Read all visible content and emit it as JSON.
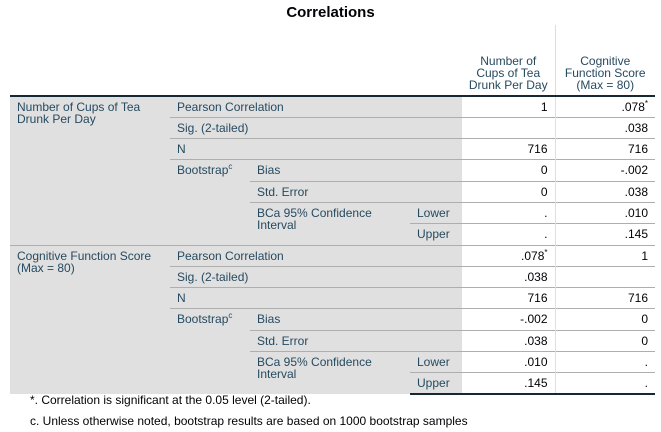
{
  "title": "Correlations",
  "columns": [
    "Number of Cups of Tea Drunk Per Day",
    "Cognitive Function Score (Max = 80)"
  ],
  "row_labels": {
    "pearson": "Pearson Correlation",
    "sig": "Sig. (2-tailed)",
    "n": "N",
    "bootstrap": "Bootstrap",
    "bootstrap_sup": "c",
    "bias": "Bias",
    "se": "Std. Error",
    "bca": "BCa 95% Confidence Interval",
    "lower": "Lower",
    "upper": "Upper"
  },
  "blocks": [
    {
      "variable": "Number of Cups of Tea Drunk Per Day",
      "c1": {
        "pearson": "1",
        "sig": "",
        "n": "716",
        "bias": "0",
        "se": "0",
        "lower": ".",
        "upper": "."
      },
      "c2": {
        "pearson": ".078",
        "pearson_sup": "*",
        "sig": ".038",
        "n": "716",
        "bias": "-.002",
        "se": ".038",
        "lower": ".010",
        "upper": ".145"
      }
    },
    {
      "variable": "Cognitive Function Score (Max = 80)",
      "c1": {
        "pearson": ".078",
        "pearson_sup": "*",
        "sig": ".038",
        "n": "716",
        "bias": "-.002",
        "se": ".038",
        "lower": ".010",
        "upper": ".145"
      },
      "c2": {
        "pearson": "1",
        "sig": "",
        "n": "716",
        "bias": "0",
        "se": "0",
        "lower": ".",
        "upper": "."
      }
    }
  ],
  "footnotes": [
    "*. Correlation is significant at the 0.05 level (2-tailed).",
    "c. Unless otherwise noted, bootstrap results are based on 1000 bootstrap samples"
  ]
}
